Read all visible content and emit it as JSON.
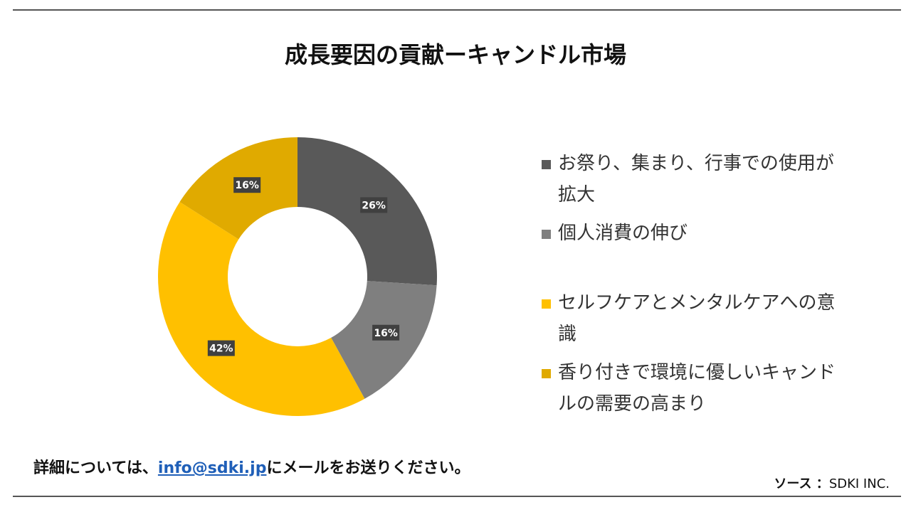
{
  "title": "成長要因の貢献ーキャンドル市場",
  "footer": {
    "prefix": "詳細については、",
    "email": "info@sdki.jp",
    "suffix": "にメールをお送りください。"
  },
  "source": {
    "label": "ソース ：",
    "value": "SDKI INC."
  },
  "chart_data": {
    "type": "pie",
    "donut": true,
    "title": "成長要因の貢献ーキャンドル市場",
    "legend_position": "right",
    "series": [
      {
        "name": "お祭り、集まり、行事での使用が拡大",
        "value": 26,
        "label": "26%",
        "color": "#595959"
      },
      {
        "name": "個人消費の伸び",
        "value": 16,
        "label": "16%",
        "color": "#7f7f7f"
      },
      {
        "name": "セルフケアとメンタルケアへの意識",
        "value": 42,
        "label": "42%",
        "color": "#ffc000"
      },
      {
        "name": "香り付きで環境に優しいキャンドルの需要の高まり",
        "value": 16,
        "label": "16%",
        "color": "#e0aa00"
      }
    ]
  }
}
